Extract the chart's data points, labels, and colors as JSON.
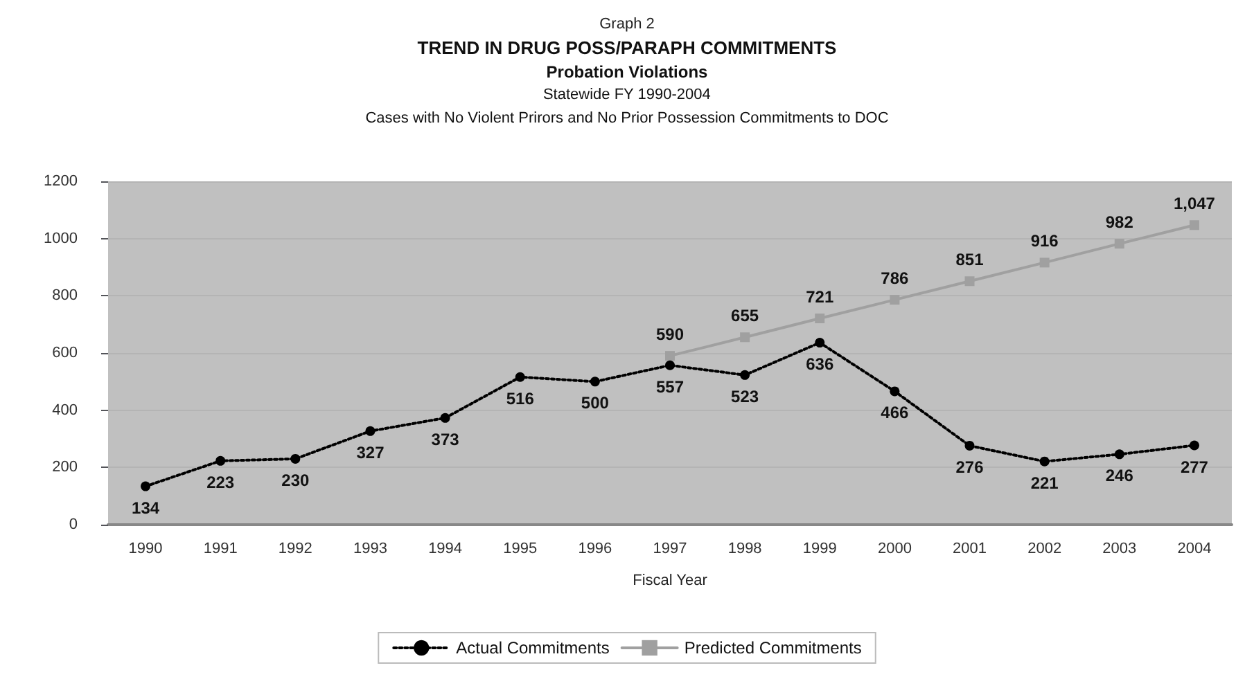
{
  "chart_data": {
    "type": "line",
    "title": "TREND IN DRUG POSS/PARAPH COMMITMENTS",
    "subtitle": "Probation Violations\nStatewide FY 1990-2004\nCases with No Violent Prirors and No Prior Possession Commitments to DOC",
    "annotations": [
      "Graph 2"
    ],
    "xlabel": "Fiscal Year",
    "categories": [
      "1990",
      "1991",
      "1992",
      "1993",
      "1994",
      "1995",
      "1996",
      "1997",
      "1998",
      "1999",
      "2000",
      "2001",
      "2002",
      "2003",
      "2004"
    ],
    "series": [
      {
        "name": "Actual Commitments",
        "color": "#000000",
        "marker": "circle",
        "line_style": "dotted",
        "values": [
          134,
          223,
          230,
          327,
          373,
          516,
          500,
          557,
          523,
          636,
          466,
          276,
          221,
          246,
          277
        ],
        "value_labels": [
          "134",
          "223",
          "230",
          "327",
          "373",
          "516",
          "500",
          "557",
          "523",
          "636",
          "466",
          "276",
          "221",
          "246",
          "277"
        ]
      },
      {
        "name": "Predicted Commitments",
        "color": "#a0a0a0",
        "marker": "square",
        "line_style": "solid",
        "values": [
          null,
          null,
          null,
          null,
          null,
          null,
          null,
          590,
          655,
          721,
          786,
          851,
          916,
          982,
          1047
        ],
        "value_labels": [
          null,
          null,
          null,
          null,
          null,
          null,
          null,
          "590",
          "655",
          "721",
          "786",
          "851",
          "916",
          "982",
          "1,047"
        ]
      }
    ],
    "ylim": [
      0,
      1200
    ],
    "yticks": [
      0,
      200,
      400,
      600,
      800,
      1000,
      1200
    ],
    "grid": "y",
    "legend": "bottom"
  }
}
